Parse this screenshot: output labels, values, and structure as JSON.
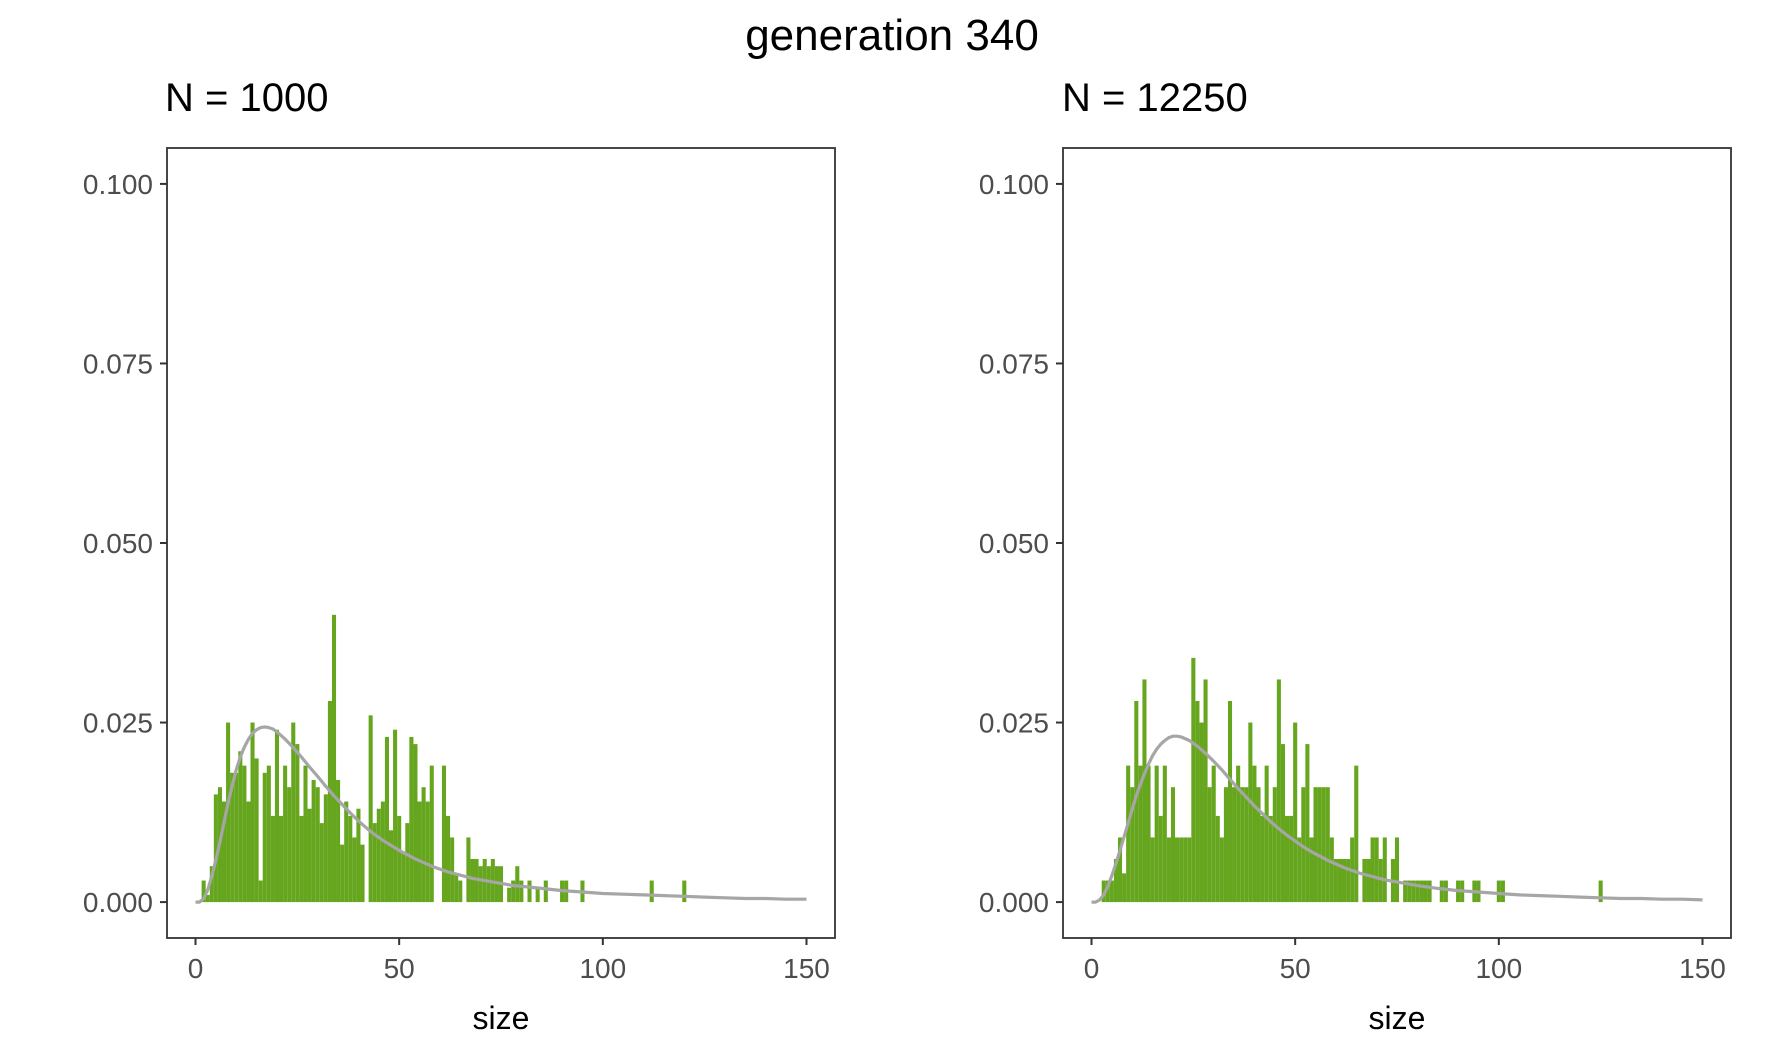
{
  "title": "generation 340",
  "colors": {
    "bar": "#66a61e",
    "curve": "#a6a6a6",
    "frame": "#333333",
    "tick_text": "#4d4d4d"
  },
  "chart_data": [
    {
      "type": "bar",
      "title": "N = 1000",
      "xlabel": "size",
      "ylabel": "",
      "xlim": [
        -7,
        157
      ],
      "ylim": [
        -0.005,
        0.105
      ],
      "xticks": [
        "0",
        "50",
        "100",
        "150"
      ],
      "xtick_values": [
        0,
        50,
        100,
        150
      ],
      "yticks": [
        "0.000",
        "0.025",
        "0.050",
        "0.075",
        "0.100"
      ],
      "ytick_values": [
        0,
        0.025,
        0.05,
        0.075,
        0.1
      ],
      "grid": false,
      "bin_width": 1,
      "series": [
        {
          "type": "bar",
          "x": [
            2,
            3,
            4,
            5,
            6,
            7,
            8,
            9,
            10,
            11,
            12,
            13,
            14,
            15,
            16,
            17,
            18,
            19,
            20,
            21,
            22,
            23,
            24,
            25,
            26,
            27,
            28,
            29,
            30,
            31,
            32,
            33,
            34,
            35,
            36,
            37,
            38,
            39,
            40,
            41,
            43,
            44,
            45,
            46,
            47,
            48,
            49,
            50,
            51,
            52,
            53,
            54,
            55,
            56,
            57,
            58,
            61,
            62,
            63,
            64,
            65,
            67,
            68,
            69,
            70,
            71,
            72,
            73,
            74,
            75,
            77,
            78,
            79,
            80,
            82,
            84,
            86,
            90,
            91,
            95,
            112,
            120
          ],
          "values": [
            0.003,
            0.001,
            0.005,
            0.015,
            0.016,
            0.014,
            0.025,
            0.018,
            0.018,
            0.021,
            0.019,
            0.014,
            0.025,
            0.02,
            0.003,
            0.018,
            0.019,
            0.012,
            0.024,
            0.012,
            0.019,
            0.016,
            0.025,
            0.022,
            0.012,
            0.019,
            0.013,
            0.017,
            0.016,
            0.011,
            0.015,
            0.028,
            0.04,
            0.017,
            0.008,
            0.014,
            0.012,
            0.009,
            0.013,
            0.008,
            0.026,
            0.011,
            0.013,
            0.014,
            0.023,
            0.01,
            0.024,
            0.012,
            0.007,
            0.011,
            0.023,
            0.022,
            0.014,
            0.016,
            0.014,
            0.019,
            0.019,
            0.012,
            0.009,
            0.004,
            0.003,
            0.009,
            0.006,
            0.006,
            0.005,
            0.006,
            0.005,
            0.006,
            0.005,
            0.005,
            0.002,
            0.003,
            0.005,
            0.003,
            0.003,
            0.002,
            0.003,
            0.003,
            0.003,
            0.003,
            0.003,
            0.003
          ]
        },
        {
          "type": "line",
          "x": [
            0,
            1,
            2,
            3,
            4,
            5,
            6,
            7,
            8,
            9,
            10,
            11,
            12,
            13,
            14,
            15,
            16,
            17,
            18,
            19,
            20,
            22,
            24,
            26,
            28,
            30,
            32,
            34,
            36,
            38,
            40,
            42,
            44,
            46,
            48,
            50,
            52,
            54,
            56,
            58,
            60,
            62,
            64,
            66,
            68,
            70,
            72,
            74,
            76,
            78,
            80,
            85,
            90,
            95,
            100,
            105,
            110,
            115,
            120,
            125,
            130,
            135,
            140,
            145,
            150
          ],
          "values": [
            0,
            0,
            0.0005,
            0.0017,
            0.0036,
            0.0059,
            0.0084,
            0.0111,
            0.0138,
            0.0162,
            0.0184,
            0.0202,
            0.0216,
            0.0227,
            0.0235,
            0.024,
            0.0243,
            0.0244,
            0.0243,
            0.0241,
            0.0237,
            0.0227,
            0.0215,
            0.0202,
            0.0188,
            0.0175,
            0.0161,
            0.0148,
            0.0136,
            0.0124,
            0.0113,
            0.0103,
            0.0094,
            0.0086,
            0.0079,
            0.0072,
            0.0066,
            0.006,
            0.0055,
            0.005,
            0.0046,
            0.0042,
            0.0039,
            0.0036,
            0.0033,
            0.0031,
            0.0029,
            0.0027,
            0.0025,
            0.0023,
            0.0022,
            0.0019,
            0.0016,
            0.0014,
            0.0012,
            0.0011,
            0.001,
            0.0009,
            0.0008,
            0.0007,
            0.0006,
            0.0005,
            0.0005,
            0.0004,
            0.0004
          ]
        }
      ]
    },
    {
      "type": "bar",
      "title": "N = 12250",
      "xlabel": "size",
      "ylabel": "",
      "xlim": [
        -7,
        157
      ],
      "ylim": [
        -0.005,
        0.105
      ],
      "xticks": [
        "0",
        "50",
        "100",
        "150"
      ],
      "xtick_values": [
        0,
        50,
        100,
        150
      ],
      "yticks": [
        "0.000",
        "0.025",
        "0.050",
        "0.075",
        "0.100"
      ],
      "ytick_values": [
        0,
        0.025,
        0.05,
        0.075,
        0.1
      ],
      "grid": false,
      "bin_width": 1,
      "series": [
        {
          "type": "bar",
          "x": [
            3,
            4,
            5,
            6,
            7,
            8,
            9,
            10,
            11,
            12,
            13,
            14,
            15,
            16,
            17,
            18,
            19,
            20,
            21,
            22,
            23,
            24,
            25,
            26,
            27,
            28,
            29,
            30,
            31,
            32,
            33,
            34,
            35,
            36,
            37,
            38,
            39,
            40,
            41,
            42,
            43,
            44,
            45,
            46,
            47,
            48,
            49,
            50,
            51,
            52,
            53,
            54,
            55,
            56,
            57,
            58,
            59,
            60,
            61,
            62,
            63,
            64,
            65,
            67,
            68,
            69,
            70,
            71,
            72,
            74,
            75,
            77,
            78,
            79,
            80,
            81,
            82,
            83,
            86,
            87,
            90,
            91,
            94,
            95,
            100,
            101,
            125
          ],
          "values": [
            0.003,
            0.003,
            0.003,
            0.006,
            0.009,
            0.004,
            0.019,
            0.016,
            0.028,
            0.019,
            0.031,
            0.019,
            0.009,
            0.019,
            0.012,
            0.019,
            0.009,
            0.016,
            0.009,
            0.009,
            0.009,
            0.009,
            0.034,
            0.028,
            0.025,
            0.031,
            0.016,
            0.019,
            0.012,
            0.009,
            0.016,
            0.028,
            0.016,
            0.019,
            0.016,
            0.016,
            0.025,
            0.019,
            0.016,
            0.012,
            0.019,
            0.012,
            0.016,
            0.031,
            0.022,
            0.012,
            0.012,
            0.025,
            0.009,
            0.016,
            0.022,
            0.009,
            0.016,
            0.016,
            0.016,
            0.016,
            0.009,
            0.006,
            0.006,
            0.006,
            0.006,
            0.009,
            0.019,
            0.006,
            0.006,
            0.009,
            0.009,
            0.006,
            0.009,
            0.006,
            0.009,
            0.003,
            0.003,
            0.003,
            0.003,
            0.003,
            0.003,
            0.003,
            0.003,
            0.003,
            0.003,
            0.003,
            0.003,
            0.003,
            0.003,
            0.003,
            0.003
          ]
        },
        {
          "type": "line",
          "x": [
            0,
            1,
            2,
            3,
            4,
            5,
            6,
            7,
            8,
            9,
            10,
            11,
            12,
            13,
            14,
            15,
            16,
            17,
            18,
            19,
            20,
            21,
            22,
            24,
            26,
            28,
            30,
            32,
            34,
            36,
            38,
            40,
            42,
            44,
            46,
            48,
            50,
            52,
            54,
            56,
            58,
            60,
            62,
            64,
            66,
            68,
            70,
            72,
            74,
            76,
            78,
            80,
            85,
            90,
            95,
            100,
            105,
            110,
            115,
            120,
            125,
            130,
            135,
            140,
            145,
            150
          ],
          "values": [
            0,
            0,
            0.0003,
            0.001,
            0.0022,
            0.0037,
            0.0054,
            0.0072,
            0.0091,
            0.011,
            0.0129,
            0.0148,
            0.0164,
            0.0179,
            0.0192,
            0.0204,
            0.0213,
            0.022,
            0.0225,
            0.0229,
            0.0231,
            0.0231,
            0.023,
            0.0225,
            0.0217,
            0.0207,
            0.0196,
            0.0184,
            0.0171,
            0.0158,
            0.0146,
            0.0134,
            0.0123,
            0.0112,
            0.0102,
            0.0093,
            0.0085,
            0.0077,
            0.007,
            0.0064,
            0.0058,
            0.0053,
            0.0048,
            0.0044,
            0.004,
            0.0037,
            0.0034,
            0.0031,
            0.0029,
            0.0027,
            0.0025,
            0.0023,
            0.0019,
            0.0016,
            0.0014,
            0.0012,
            0.001,
            0.0009,
            0.0008,
            0.0007,
            0.0006,
            0.0005,
            0.0005,
            0.0004,
            0.0004,
            0.0003
          ]
        }
      ]
    }
  ]
}
